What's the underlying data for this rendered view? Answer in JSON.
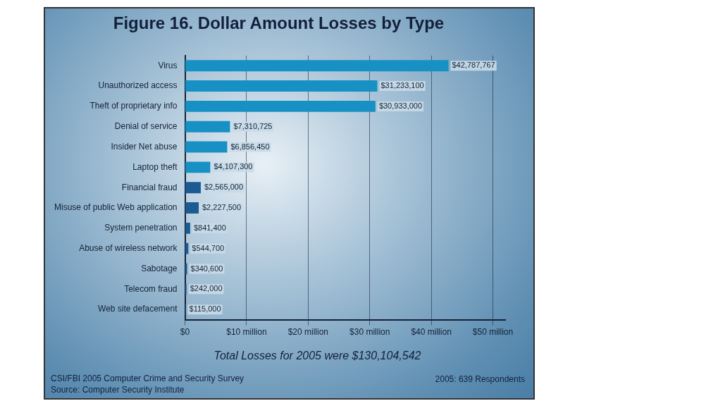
{
  "chart_data": {
    "type": "bar",
    "orientation": "horizontal",
    "title": "Figure 16. Dollar Amount Losses by Type",
    "categories": [
      "Virus",
      "Unauthorized access",
      "Theft of proprietary info",
      "Denial of service",
      "Insider Net abuse",
      "Laptop theft",
      "Financial fraud",
      "Misuse of public Web application",
      "System penetration",
      "Abuse of wireless network",
      "Sabotage",
      "Telecom fraud",
      "Web site defacement"
    ],
    "values": [
      42787767,
      31233100,
      30933000,
      7310725,
      6856450,
      4107300,
      2565000,
      2227500,
      841400,
      544700,
      340600,
      242000,
      115000
    ],
    "value_labels": [
      "$42,787,767",
      "$31,233,100",
      "$30,933,000",
      "$7,310,725",
      "$6,856,450",
      "$4,107,300",
      "$2,565,000",
      "$2,227,500",
      "$841,400",
      "$544,700",
      "$340,600",
      "$242,000",
      "$115,000"
    ],
    "colors": [
      "#1790c4",
      "#1790c4",
      "#1790c4",
      "#1790c4",
      "#1790c4",
      "#1790c4",
      "#1c5a94",
      "#1c5a94",
      "#1c5a94",
      "#1c5a94",
      "#1c5a94",
      "#1c5a94",
      "#1c5a94"
    ],
    "xlim": [
      0,
      52000000
    ],
    "xticks": [
      {
        "value": 0,
        "label": "$0"
      },
      {
        "value": 10000000,
        "label": "$10 million"
      },
      {
        "value": 20000000,
        "label": "$20 million"
      },
      {
        "value": 30000000,
        "label": "$30 million"
      },
      {
        "value": 40000000,
        "label": "$40 million"
      },
      {
        "value": 50000000,
        "label": "$50 million"
      }
    ],
    "grid": "x",
    "legend": false,
    "annotations": [
      "Total Losses for 2005 were $130,104,542",
      "CSI/FBI 2005 Computer Crime and Security Survey",
      "Source: Computer Security Institute",
      "2005: 639 Respondents"
    ]
  }
}
